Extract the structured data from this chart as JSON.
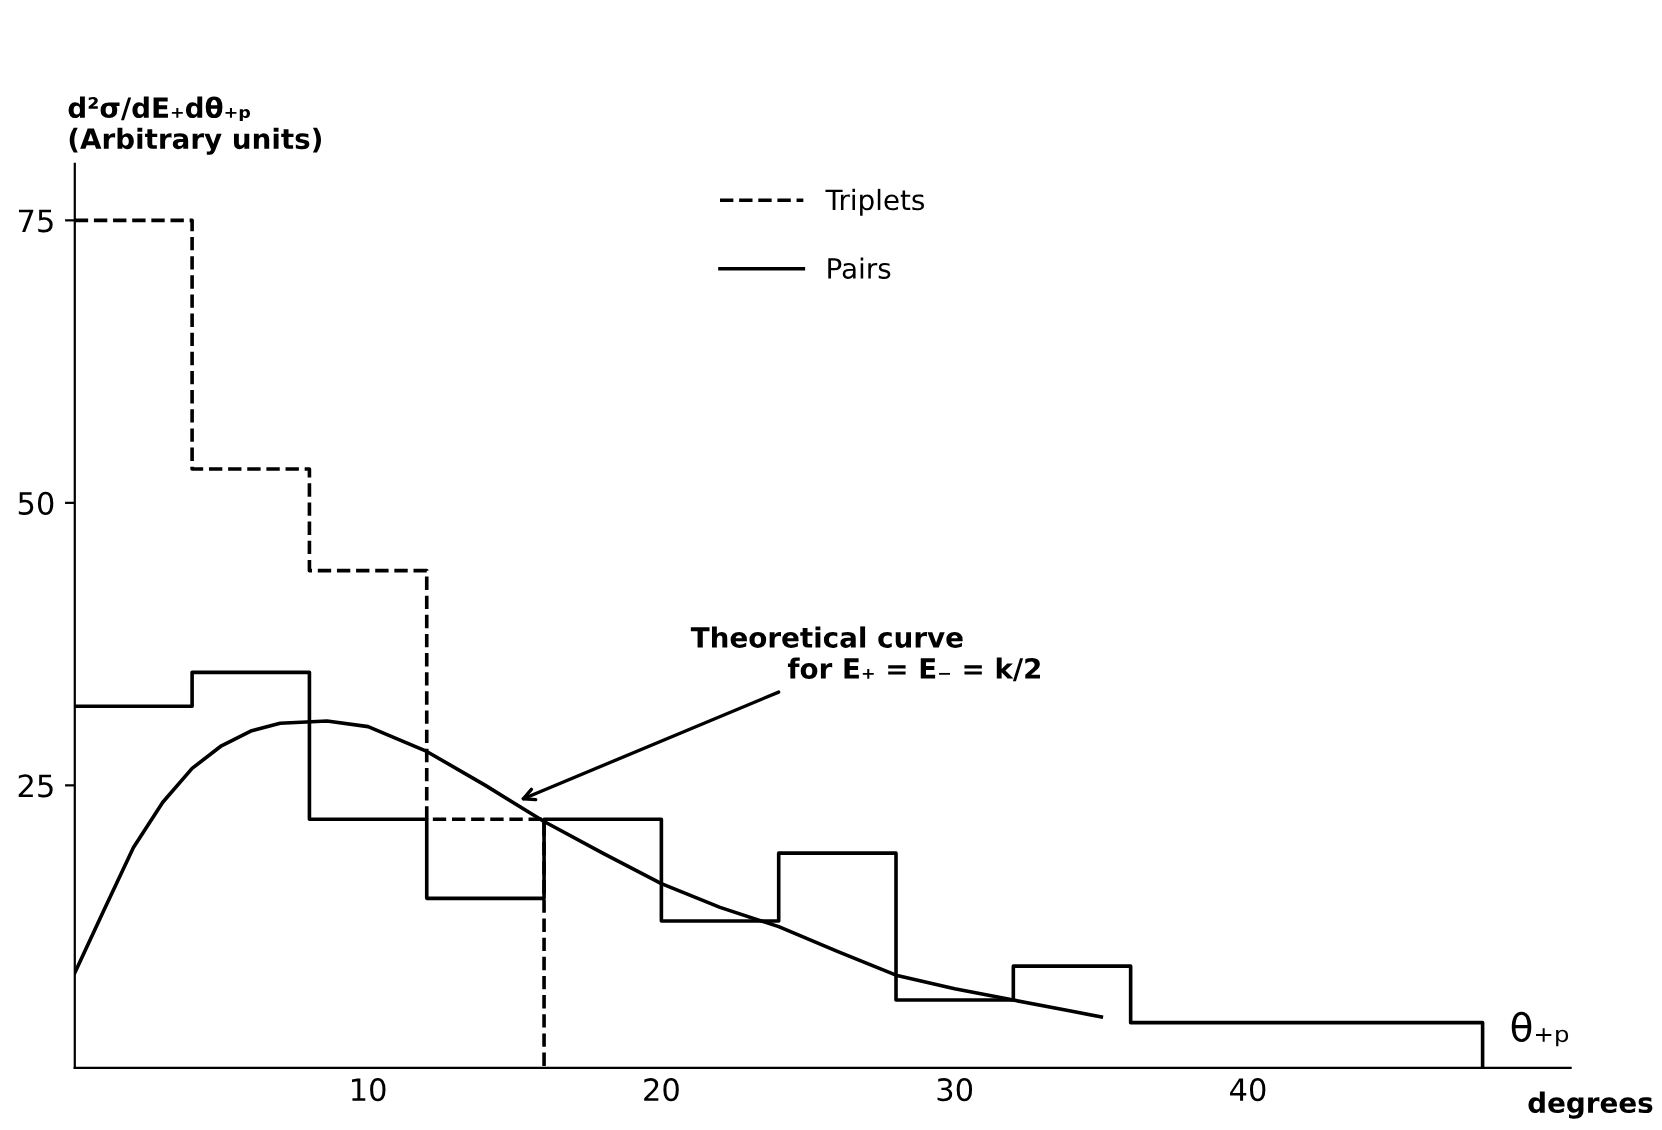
{
  "chart_data": {
    "type": "step",
    "ylabel": "d²σ/dE₊dθ₊ₚ\n(Arbitrary units)",
    "xlabel": "θ₊ₚ",
    "x2label": "degrees",
    "xlim": [
      0,
      51
    ],
    "ylim": [
      0,
      80
    ],
    "xticks": [
      10,
      20,
      30,
      40
    ],
    "yticks": [
      25,
      50,
      75
    ],
    "grid": false,
    "legend": "top",
    "series": [
      {
        "name": "Triplets",
        "color": "#000000",
        "line_style": "dashed",
        "x": [
          0,
          4,
          8,
          12,
          16
        ],
        "values": [
          75,
          53,
          44,
          22,
          0
        ]
      },
      {
        "name": "Pairs",
        "color": "#000000",
        "line_style": "solid",
        "x": [
          0,
          4,
          8,
          12,
          16,
          20,
          24,
          28,
          32,
          36,
          48
        ],
        "values": [
          32,
          35,
          22,
          15,
          22,
          13,
          19,
          6,
          9,
          4,
          0
        ]
      },
      {
        "type": "line",
        "color": "#000000",
        "line_style": "solid",
        "x": [
          0,
          1,
          2,
          3,
          4,
          5,
          6,
          7,
          8.6,
          10,
          12,
          14,
          16,
          18,
          20,
          22,
          24,
          26,
          28,
          30,
          32,
          34,
          35
        ],
        "values": [
          8.4,
          14,
          19.5,
          23.5,
          26.5,
          28.5,
          29.8,
          30.5,
          30.7,
          30.2,
          28,
          25,
          21.8,
          19,
          16.3,
          14.2,
          12.5,
          10.3,
          8.2,
          7,
          6,
          5,
          4.5
        ]
      }
    ],
    "annotations": [
      {
        "text": "Theoretical curve\n          for E₊ = E₋ = k/2",
        "x": 15,
        "y": 23.5
      }
    ]
  }
}
